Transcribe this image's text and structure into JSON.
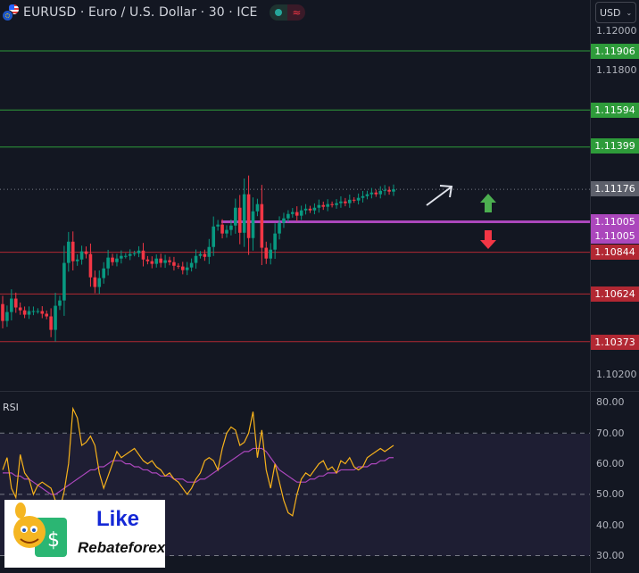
{
  "header": {
    "title": "EURUSD · Euro / U.S. Dollar · 30 · ICE",
    "status_icon": "market-open-dot",
    "data_icon": "≈",
    "currency": "USD"
  },
  "colors": {
    "up": "#089981",
    "down": "#f23645",
    "support_line": "#b22833",
    "resistance_line": "#2e9b3a",
    "pivot_line": "#ab47bc",
    "rsi": "#f7b21b",
    "rsi_ma": "#ab47bc",
    "rsi_band": "#1e1e33"
  },
  "price_axis": {
    "ticks": [
      "1.12000",
      "1.11800",
      "1.10200"
    ]
  },
  "levels": [
    {
      "price": 1.11906,
      "label": "1.11906",
      "kind": "resistance"
    },
    {
      "price": 1.11594,
      "label": "1.11594",
      "kind": "resistance"
    },
    {
      "price": 1.11399,
      "label": "1.11399",
      "kind": "resistance"
    },
    {
      "price": 1.11005,
      "label": "1.11005",
      "kind": "pivot"
    },
    {
      "price": 1.10844,
      "label": "1.10844",
      "kind": "support"
    },
    {
      "price": 1.10624,
      "label": "1.10624",
      "kind": "support"
    },
    {
      "price": 1.10373,
      "label": "1.10373",
      "kind": "support"
    }
  ],
  "last_price": {
    "price": 1.11176,
    "label": "1.11176"
  },
  "pivot_second_label": "1.11005",
  "chart_data": {
    "type": "candlestick",
    "price_range": [
      1.1015,
      1.1204
    ],
    "first_open": 1.10571,
    "closes": [
      1.10482,
      1.10529,
      1.106,
      1.10553,
      1.10538,
      1.10515,
      1.10534,
      1.10534,
      1.10534,
      1.1052,
      1.10506,
      1.10435,
      1.10562,
      1.1059,
      1.10788,
      1.109,
      1.10797,
      1.10806,
      1.10849,
      1.10835,
      1.10712,
      1.10661,
      1.10708,
      1.10759,
      1.10816,
      1.10792,
      1.10811,
      1.10825,
      1.10825,
      1.10835,
      1.10839,
      1.10853,
      1.10806,
      1.10797,
      1.10783,
      1.10811,
      1.10788,
      1.10802,
      1.10792,
      1.10773,
      1.10769,
      1.1075,
      1.10764,
      1.10788,
      1.10825,
      1.10835,
      1.1082,
      1.10872,
      1.1098,
      1.1099,
      1.10943,
      1.10962,
      1.10985,
      1.11079,
      1.10947,
      1.1115,
      1.10919,
      1.1106,
      1.11098,
      1.10868,
      1.10811,
      1.10858,
      1.10943,
      1.10999,
      1.11023,
      1.11046,
      1.11056,
      1.11037,
      1.11065,
      1.11074,
      1.11065,
      1.11079,
      1.11093,
      1.11084,
      1.11098,
      1.11093,
      1.11103,
      1.11112,
      1.11103,
      1.11121,
      1.11117,
      1.11131,
      1.1114,
      1.1115,
      1.11159,
      1.1115,
      1.11168,
      1.11173,
      1.11164,
      1.11176
    ],
    "rsi_panel": {
      "title": "RSI",
      "ticks": [
        "80.00",
        "70.00",
        "60.00",
        "50.00",
        "40.00",
        "30.00"
      ],
      "range": [
        27,
        83
      ],
      "bands": [
        30,
        50,
        70
      ],
      "rsi": [
        58,
        62,
        52,
        49,
        63,
        57,
        55,
        50,
        53,
        54,
        53,
        52,
        48,
        45,
        51,
        60,
        78,
        75,
        66,
        67,
        69,
        66,
        57,
        52,
        56,
        60,
        64,
        62,
        63,
        64,
        65,
        63,
        61,
        60,
        61,
        59,
        58,
        56,
        57,
        55,
        54,
        52,
        50,
        52,
        55,
        57,
        61,
        62,
        61,
        58,
        65,
        70,
        72,
        71,
        66,
        67,
        70,
        77,
        62,
        71,
        58,
        52,
        60,
        54,
        48,
        44,
        43,
        50,
        55,
        57,
        56,
        58,
        60,
        61,
        58,
        59,
        57,
        61,
        60,
        62,
        59,
        58,
        59,
        62,
        63,
        64,
        65,
        64,
        65,
        66
      ],
      "rsi_ma": [
        57,
        57,
        57,
        56,
        56,
        55,
        55,
        54,
        53,
        52,
        51,
        50,
        50,
        51,
        52,
        53,
        54,
        55,
        56,
        57,
        58,
        58,
        59,
        59,
        60,
        61,
        61,
        61,
        60,
        60,
        59,
        59,
        58,
        58,
        57,
        57,
        56,
        56,
        56,
        55,
        55,
        55,
        54,
        54,
        54,
        55,
        55,
        56,
        57,
        58,
        59,
        60,
        61,
        62,
        63,
        64,
        64,
        65,
        65,
        65,
        64,
        62,
        60,
        58,
        57,
        56,
        55,
        54,
        54,
        54,
        55,
        55,
        56,
        56,
        57,
        57,
        57,
        58,
        58,
        58,
        58,
        59,
        59,
        59,
        60,
        60,
        61,
        61,
        62,
        62
      ]
    }
  },
  "annotations": {
    "arrow_trend": "trend-up-arrow",
    "arrow_up": "green-up-arrow",
    "arrow_down": "red-down-arrow"
  },
  "watermark": {
    "line1": "Like",
    "line2": "Rebateforex"
  }
}
